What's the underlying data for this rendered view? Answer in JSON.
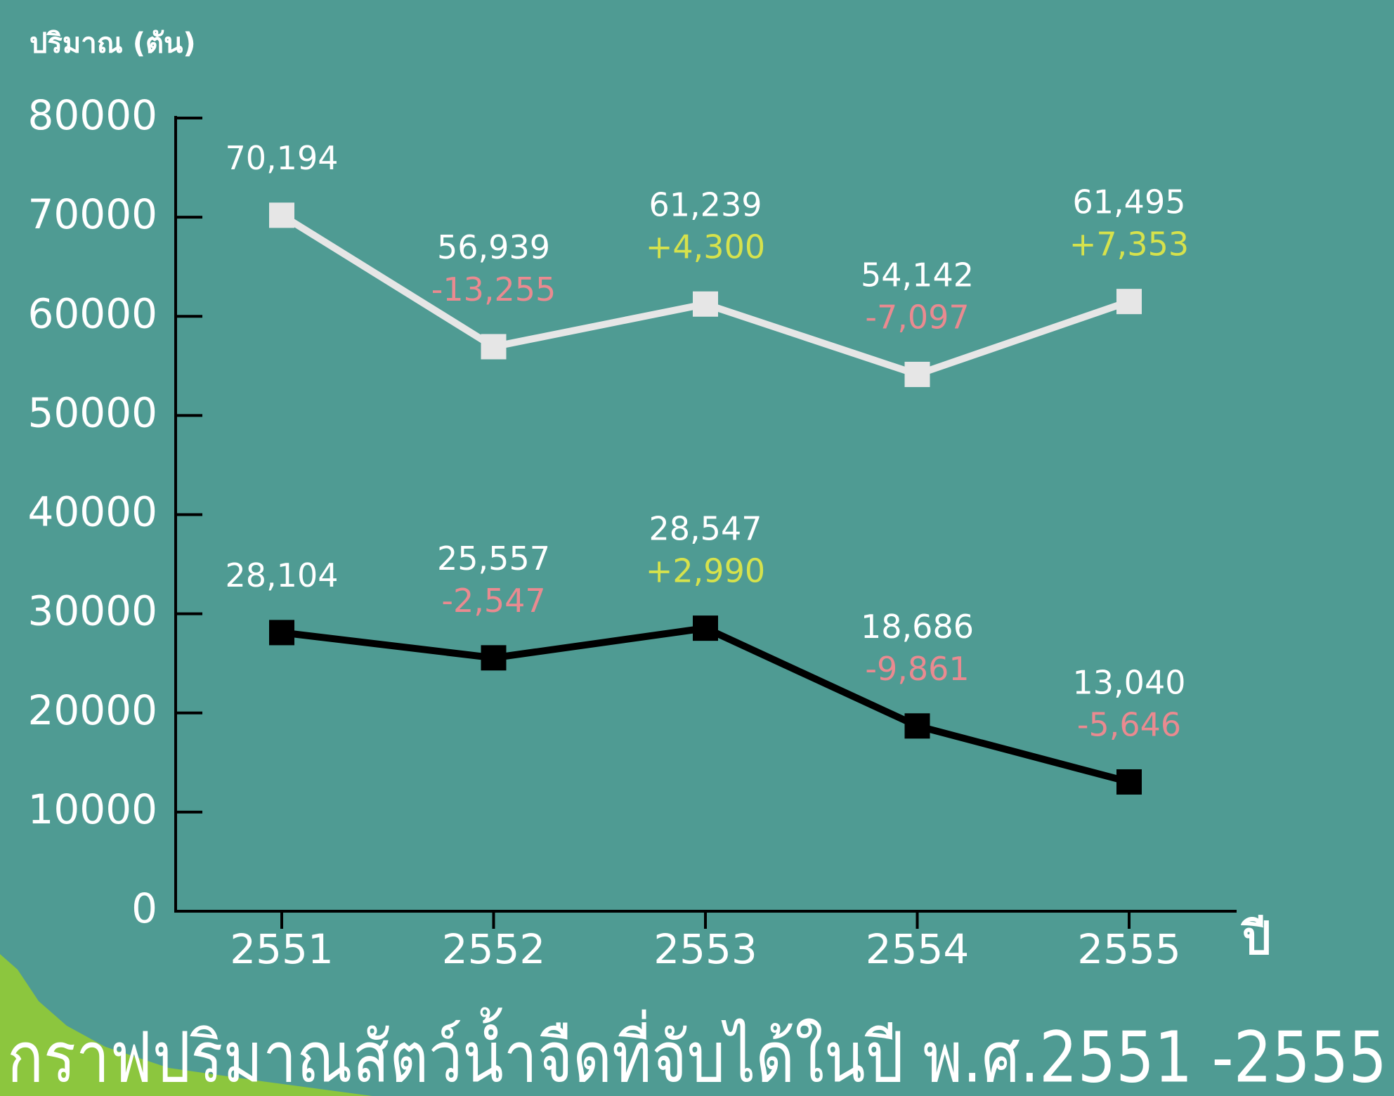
{
  "chart_data": {
    "type": "line",
    "title": "กราฟปริมาณสัตว์น้ำจืดที่จับได้ในปี พ.ศ.2551 -2555",
    "y_label": "ปริมาณ (ตัน)",
    "x_label": "ปี",
    "categories": [
      "2551",
      "2552",
      "2553",
      "2554",
      "2555"
    ],
    "series": [
      {
        "color": "#e6e6e6",
        "values": [
          70194,
          56939,
          61239,
          54142,
          61495
        ],
        "value_labels": [
          "70,194",
          "56,939",
          "61,239",
          "54,142",
          "61,495"
        ],
        "changes": [
          null,
          -13255,
          4300,
          -7097,
          7353
        ],
        "change_labels": [
          null,
          "-13,255",
          "+4,300",
          "-7,097",
          "+7,353"
        ]
      },
      {
        "color": "#000000",
        "values": [
          28104,
          25557,
          28547,
          18686,
          13040
        ],
        "value_labels": [
          "28,104",
          "25,557",
          "28,547",
          "18,686",
          "13,040"
        ],
        "changes": [
          null,
          -2547,
          2990,
          -9861,
          -5646
        ],
        "change_labels": [
          null,
          "-2,547",
          "+2,990",
          "-9,861",
          "-5,646"
        ]
      }
    ],
    "positive_color": "#d6e24c",
    "negative_color": "#ea8a90",
    "ylim": [
      0,
      80000
    ],
    "yticks": [
      0,
      10000,
      20000,
      30000,
      40000,
      50000,
      60000,
      70000,
      80000
    ]
  }
}
